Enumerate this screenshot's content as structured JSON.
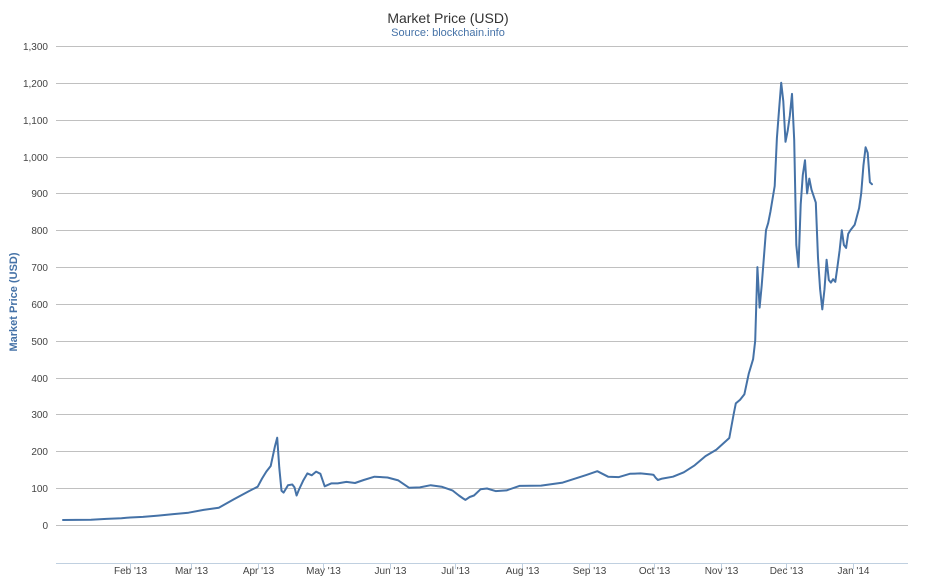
{
  "chart_data": {
    "type": "line",
    "title": "Market Price (USD)",
    "subtitle": "Source: blockchain.info",
    "xlabel": "",
    "ylabel": "Market Price (USD)",
    "ylim": [
      0,
      1300
    ],
    "yticks": [
      0,
      100,
      200,
      300,
      400,
      500,
      600,
      700,
      800,
      900,
      1000,
      1100,
      1200,
      1300
    ],
    "ytick_labels": [
      "0",
      "100",
      "200",
      "300",
      "400",
      "500",
      "600",
      "700",
      "800",
      "900",
      "1,000",
      "1,100",
      "1,200",
      "1,300"
    ],
    "xlim": [
      "2013-01-01",
      "2014-01-22"
    ],
    "xticks": [
      {
        "date": "2013-02-01",
        "label": "Feb '13"
      },
      {
        "date": "2013-03-01",
        "label": "Mar '13"
      },
      {
        "date": "2013-04-01",
        "label": "Apr '13"
      },
      {
        "date": "2013-05-01",
        "label": "May '13"
      },
      {
        "date": "2013-06-01",
        "label": "Jun '13"
      },
      {
        "date": "2013-07-01",
        "label": "Jul '13"
      },
      {
        "date": "2013-08-01",
        "label": "Aug '13"
      },
      {
        "date": "2013-09-01",
        "label": "Sep '13"
      },
      {
        "date": "2013-10-01",
        "label": "Oct '13"
      },
      {
        "date": "2013-11-01",
        "label": "Nov '13"
      },
      {
        "date": "2013-12-01",
        "label": "Dec '13"
      },
      {
        "date": "2014-01-01",
        "label": "Jan '14"
      }
    ],
    "grid": true,
    "legend": "none",
    "series": [
      {
        "color": "#4572A7",
        "points": [
          [
            "2013-01-01",
            13.5
          ],
          [
            "2013-01-07",
            13.8
          ],
          [
            "2013-01-14",
            14.3
          ],
          [
            "2013-01-21",
            16.5
          ],
          [
            "2013-01-28",
            18.5
          ],
          [
            "2013-02-01",
            20.4
          ],
          [
            "2013-02-07",
            22
          ],
          [
            "2013-02-14",
            25.5
          ],
          [
            "2013-02-21",
            29.5
          ],
          [
            "2013-02-28",
            33.4
          ],
          [
            "2013-03-07",
            41
          ],
          [
            "2013-03-14",
            47
          ],
          [
            "2013-03-21",
            70
          ],
          [
            "2013-03-28",
            92
          ],
          [
            "2013-04-01",
            104
          ],
          [
            "2013-04-03",
            126
          ],
          [
            "2013-04-05",
            145
          ],
          [
            "2013-04-07",
            160
          ],
          [
            "2013-04-09",
            214
          ],
          [
            "2013-04-10",
            237
          ],
          [
            "2013-04-11",
            155
          ],
          [
            "2013-04-12",
            93
          ],
          [
            "2013-04-13",
            88
          ],
          [
            "2013-04-15",
            108
          ],
          [
            "2013-04-17",
            110
          ],
          [
            "2013-04-18",
            102
          ],
          [
            "2013-04-19",
            80
          ],
          [
            "2013-04-20",
            95
          ],
          [
            "2013-04-22",
            120
          ],
          [
            "2013-04-24",
            140
          ],
          [
            "2013-04-26",
            135
          ],
          [
            "2013-04-28",
            145
          ],
          [
            "2013-04-30",
            139
          ],
          [
            "2013-05-02",
            105
          ],
          [
            "2013-05-05",
            113
          ],
          [
            "2013-05-08",
            113
          ],
          [
            "2013-05-12",
            117
          ],
          [
            "2013-05-16",
            114
          ],
          [
            "2013-05-20",
            122
          ],
          [
            "2013-05-25",
            131
          ],
          [
            "2013-05-31",
            129
          ],
          [
            "2013-06-05",
            121
          ],
          [
            "2013-06-10",
            101
          ],
          [
            "2013-06-15",
            102
          ],
          [
            "2013-06-20",
            108
          ],
          [
            "2013-06-25",
            104
          ],
          [
            "2013-06-30",
            94
          ],
          [
            "2013-07-03",
            80
          ],
          [
            "2013-07-05",
            72
          ],
          [
            "2013-07-06",
            68
          ],
          [
            "2013-07-08",
            76
          ],
          [
            "2013-07-10",
            80
          ],
          [
            "2013-07-13",
            97
          ],
          [
            "2013-07-16",
            99
          ],
          [
            "2013-07-20",
            92
          ],
          [
            "2013-07-25",
            94
          ],
          [
            "2013-07-31",
            106
          ],
          [
            "2013-08-10",
            107
          ],
          [
            "2013-08-20",
            115
          ],
          [
            "2013-08-31",
            136
          ],
          [
            "2013-09-05",
            146
          ],
          [
            "2013-09-10",
            131
          ],
          [
            "2013-09-15",
            130
          ],
          [
            "2013-09-20",
            139
          ],
          [
            "2013-09-25",
            140
          ],
          [
            "2013-09-30",
            137
          ],
          [
            "2013-10-01",
            136
          ],
          [
            "2013-10-02",
            128
          ],
          [
            "2013-10-03",
            122
          ],
          [
            "2013-10-05",
            126
          ],
          [
            "2013-10-10",
            131
          ],
          [
            "2013-10-15",
            143
          ],
          [
            "2013-10-20",
            162
          ],
          [
            "2013-10-25",
            187
          ],
          [
            "2013-10-30",
            204
          ],
          [
            "2013-11-05",
            236
          ],
          [
            "2013-11-07",
            300
          ],
          [
            "2013-11-08",
            330
          ],
          [
            "2013-11-10",
            340
          ],
          [
            "2013-11-12",
            355
          ],
          [
            "2013-11-14",
            410
          ],
          [
            "2013-11-16",
            450
          ],
          [
            "2013-11-17",
            500
          ],
          [
            "2013-11-18",
            700
          ],
          [
            "2013-11-19",
            590
          ],
          [
            "2013-11-20",
            650
          ],
          [
            "2013-11-22",
            800
          ],
          [
            "2013-11-23",
            820
          ],
          [
            "2013-11-24",
            850
          ],
          [
            "2013-11-26",
            920
          ],
          [
            "2013-11-27",
            1050
          ],
          [
            "2013-11-28",
            1125
          ],
          [
            "2013-11-29",
            1200
          ],
          [
            "2013-11-30",
            1150
          ],
          [
            "2013-12-01",
            1040
          ],
          [
            "2013-12-02",
            1070
          ],
          [
            "2013-12-03",
            1110
          ],
          [
            "2013-12-04",
            1170
          ],
          [
            "2013-12-05",
            1045
          ],
          [
            "2013-12-06",
            760
          ],
          [
            "2013-12-07",
            700
          ],
          [
            "2013-12-08",
            870
          ],
          [
            "2013-12-09",
            950
          ],
          [
            "2013-12-10",
            990
          ],
          [
            "2013-12-11",
            900
          ],
          [
            "2013-12-12",
            940
          ],
          [
            "2013-12-13",
            910
          ],
          [
            "2013-12-15",
            875
          ],
          [
            "2013-12-16",
            725
          ],
          [
            "2013-12-17",
            640
          ],
          [
            "2013-12-18",
            585
          ],
          [
            "2013-12-19",
            640
          ],
          [
            "2013-12-20",
            720
          ],
          [
            "2013-12-21",
            665
          ],
          [
            "2013-12-22",
            658
          ],
          [
            "2013-12-23",
            667
          ],
          [
            "2013-12-24",
            660
          ],
          [
            "2013-12-25",
            700
          ],
          [
            "2013-12-26",
            745
          ],
          [
            "2013-12-27",
            800
          ],
          [
            "2013-12-28",
            760
          ],
          [
            "2013-12-29",
            752
          ],
          [
            "2013-12-30",
            790
          ],
          [
            "2013-12-31",
            800
          ],
          [
            "2014-01-02",
            815
          ],
          [
            "2014-01-04",
            860
          ],
          [
            "2014-01-05",
            900
          ],
          [
            "2014-01-06",
            975
          ],
          [
            "2014-01-07",
            1025
          ],
          [
            "2014-01-08",
            1010
          ],
          [
            "2014-01-09",
            930
          ],
          [
            "2014-01-10",
            925
          ]
        ]
      }
    ]
  }
}
